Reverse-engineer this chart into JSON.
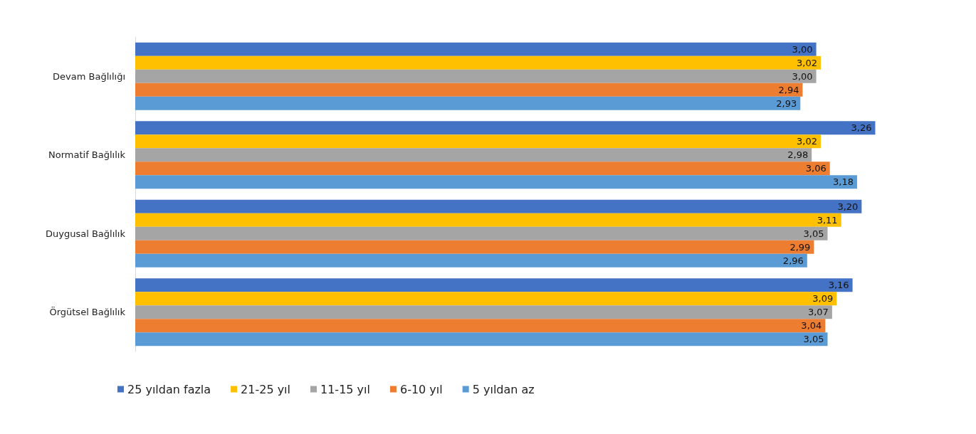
{
  "chart_data": {
    "type": "bar",
    "orientation": "horizontal",
    "categories": [
      "Devam Bağlılığı",
      "Normatif Bağlılık",
      "Duygusal Bağlılık",
      "Örgütsel Bağlılık"
    ],
    "series": [
      {
        "name": "25 yıldan fazla",
        "color": "#4472c4",
        "values": [
          3.0,
          3.26,
          3.2,
          3.16
        ],
        "value_labels": [
          "3,00",
          "3,26",
          "3,20",
          "3,16"
        ]
      },
      {
        "name": "21-25 yıl",
        "color": "#ffc000",
        "values": [
          3.02,
          3.02,
          3.11,
          3.09
        ],
        "value_labels": [
          "3,02",
          "3,02",
          "3,11",
          "3,09"
        ]
      },
      {
        "name": "11-15 yıl",
        "color": "#a5a5a5",
        "values": [
          3.0,
          2.98,
          3.05,
          3.07
        ],
        "value_labels": [
          "3,00",
          "2,98",
          "3,05",
          "3,07"
        ]
      },
      {
        "name": "6-10 yıl",
        "color": "#ed7d31",
        "values": [
          2.94,
          3.06,
          2.99,
          3.04
        ],
        "value_labels": [
          "2,94",
          "3,06",
          "2,99",
          "3,04"
        ]
      },
      {
        "name": "5 yıldan az",
        "color": "#5b9bd5",
        "values": [
          2.93,
          3.18,
          2.96,
          3.05
        ],
        "value_labels": [
          "2,93",
          "3,18",
          "2,96",
          "3,05"
        ]
      }
    ],
    "tick_labels": "y",
    "grid": false,
    "legend": "bottom"
  }
}
